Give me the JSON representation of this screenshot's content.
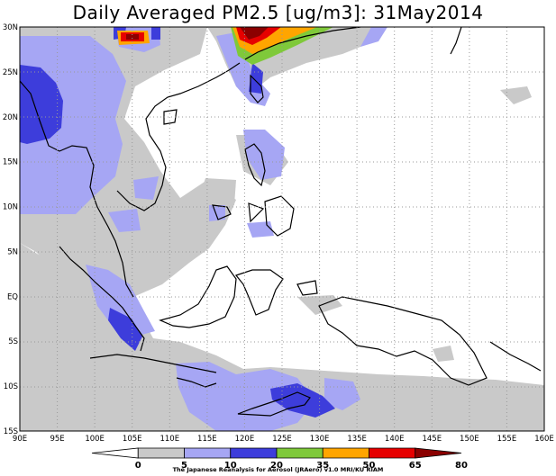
{
  "title": "Daily Averaged PM2.5 [ug/m3]: 31May2014",
  "credit": "The Japanese Reanalysis for Aerosol (JRAero) v1.0 MRI/KU RIAM",
  "map": {
    "lon_range": [
      90,
      160
    ],
    "lat_range": [
      -15,
      30
    ],
    "grid": "dotted",
    "xticks": [
      "90E",
      "95E",
      "100E",
      "105E",
      "110E",
      "115E",
      "120E",
      "125E",
      "130E",
      "135E",
      "140E",
      "145E",
      "150E",
      "155E",
      "160E"
    ],
    "yticks": [
      "15S",
      "10S",
      "5S",
      "EQ",
      "5N",
      "10N",
      "15N",
      "20N",
      "25N",
      "30N"
    ]
  },
  "colorbar": {
    "levels": [
      "0",
      "5",
      "10",
      "20",
      "35",
      "50",
      "65",
      "80"
    ],
    "colors": [
      "#ffffff",
      "#c9c9c9",
      "#a6a6f4",
      "#3d3ddb",
      "#7fc93a",
      "#ffa500",
      "#e60000",
      "#8b0000"
    ]
  }
}
